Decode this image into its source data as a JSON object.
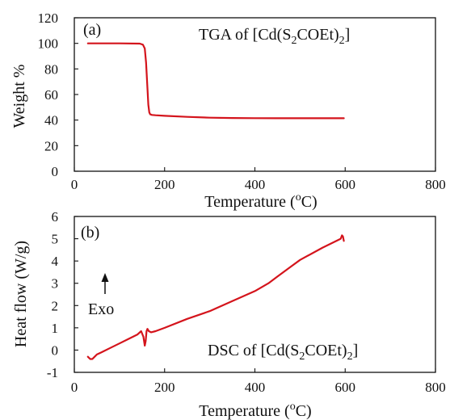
{
  "chart_data": [
    {
      "type": "line",
      "panel_label": "(a)",
      "title": {
        "main": "TGA of [Cd(S",
        "sub1": "2",
        "mid": "COEt)",
        "sub2": "2",
        "end": "]"
      },
      "xlabel": {
        "main": "Temperature (",
        "sup": "o",
        "end": "C)"
      },
      "ylabel": "Weight %",
      "xlim": [
        0,
        800
      ],
      "ylim": [
        0,
        120
      ],
      "xticks": [
        0,
        200,
        400,
        600,
        800
      ],
      "yticks": [
        0,
        20,
        40,
        60,
        80,
        100,
        120
      ],
      "grid": false,
      "line_color": "#d4141c",
      "series": [
        {
          "x": [
            30,
            100,
            145,
            152,
            156,
            159,
            162,
            164,
            166,
            168,
            172,
            180,
            200,
            250,
            300,
            350,
            400,
            450,
            500,
            550,
            597
          ],
          "y": [
            100,
            100,
            99.8,
            99,
            96,
            85,
            65,
            52,
            46,
            44.5,
            44,
            43.8,
            43.3,
            42.5,
            41.9,
            41.6,
            41.5,
            41.4,
            41.4,
            41.4,
            41.4
          ]
        }
      ]
    },
    {
      "type": "line",
      "panel_label": "(b)",
      "title": {
        "main": "DSC of [Cd(S",
        "sub1": "2",
        "mid": "COEt)",
        "sub2": "2",
        "end": "]"
      },
      "xlabel": {
        "main": "Temperature (",
        "sup": "o",
        "end": "C)"
      },
      "ylabel": "Heat flow (W/g)",
      "annotation": "Exo",
      "xlim": [
        0,
        800
      ],
      "ylim": [
        -1,
        6
      ],
      "xticks": [
        0,
        200,
        400,
        600,
        800
      ],
      "yticks": [
        -1,
        0,
        1,
        2,
        3,
        4,
        5,
        6
      ],
      "grid": false,
      "line_color": "#d4141c",
      "series": [
        {
          "x": [
            30,
            35,
            40,
            45,
            50,
            60,
            80,
            100,
            120,
            140,
            148,
            153,
            156,
            158,
            160,
            162,
            165,
            170,
            180,
            200,
            250,
            300,
            350,
            400,
            430,
            450,
            480,
            500,
            550,
            590,
            593,
            595,
            597
          ],
          "y": [
            -0.3,
            -0.4,
            -0.4,
            -0.3,
            -0.2,
            -0.1,
            0.1,
            0.3,
            0.5,
            0.7,
            0.85,
            0.6,
            0.2,
            0.4,
            0.85,
            0.95,
            0.85,
            0.8,
            0.85,
            1.0,
            1.4,
            1.75,
            2.2,
            2.65,
            3.0,
            3.3,
            3.75,
            4.05,
            4.6,
            5.0,
            5.15,
            5.1,
            4.9
          ]
        }
      ]
    }
  ]
}
